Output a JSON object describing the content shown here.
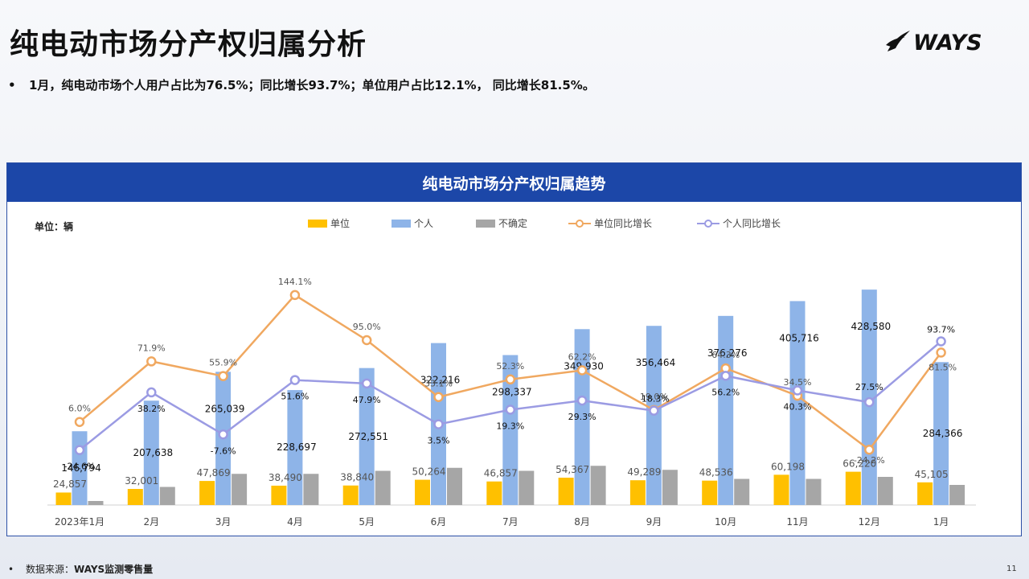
{
  "title": "纯电动市场分产权归属分析",
  "brand": "WAYS",
  "summary": {
    "bullet": "•",
    "text": "1月，纯电动市场个人用户占比为76.5%；同比增长93.7%；单位用户占比12.1%，  同比增长81.5%。"
  },
  "panel_title": "纯电动市场分产权归属趋势",
  "unit_label": "单位：辆",
  "footer": {
    "bullet": "•",
    "label": "数据来源：",
    "value": "WAYS监测零售量"
  },
  "page_number": "11",
  "colors": {
    "unit": "#ffc000",
    "individual": "#8eb4e8",
    "uncertain": "#a6a6a6",
    "unit_yoy": "#f0a860",
    "individual_yoy": "#9b9be3",
    "header": "#1c47a8"
  },
  "chart_data": {
    "type": "bar",
    "categories": [
      "2023年1月",
      "2月",
      "3月",
      "4月",
      "5月",
      "6月",
      "7月",
      "8月",
      "9月",
      "10月",
      "11月",
      "12月",
      "1月"
    ],
    "series": [
      {
        "name": "单位",
        "type": "bar",
        "values": [
          24857,
          32001,
          47869,
          38490,
          38840,
          50264,
          46857,
          54367,
          49289,
          48536,
          60198,
          66220,
          45105
        ]
      },
      {
        "name": "个人",
        "type": "bar",
        "values": [
          146794,
          207638,
          265039,
          228697,
          272551,
          322216,
          298337,
          349930,
          356464,
          376276,
          405716,
          428580,
          284366
        ]
      },
      {
        "name": "不确定",
        "type": "bar",
        "values": [
          8000,
          36000,
          62000,
          62000,
          68000,
          74000,
          68000,
          78000,
          70000,
          52000,
          52000,
          56000,
          40000
        ]
      },
      {
        "name": "单位同比增长",
        "type": "line",
        "values": [
          6.0,
          71.9,
          55.9,
          144.1,
          95.0,
          33.1,
          52.3,
          62.2,
          19.0,
          64.3,
          34.5,
          -24.2,
          81.5
        ]
      },
      {
        "name": "个人同比增长",
        "type": "line",
        "values": [
          -24.6,
          38.2,
          -7.6,
          51.6,
          47.9,
          3.5,
          19.3,
          29.3,
          18.3,
          56.2,
          40.3,
          27.5,
          93.7
        ]
      }
    ],
    "bar_labels": {
      "单位": [
        "24,857",
        "32,001",
        "47,869",
        "38,490",
        "38,840",
        "50,264",
        "46,857",
        "54,367",
        "49,289",
        "48,536",
        "60,198",
        "66,220",
        "45,105"
      ],
      "个人": [
        "146,794",
        "207,638",
        "265,039",
        "228,697",
        "272,551",
        "322,216",
        "298,337",
        "349,930",
        "356,464",
        "376,276",
        "405,716",
        "428,580",
        "284,366"
      ]
    },
    "line_labels": {
      "单位同比增长": [
        "6.0%",
        "71.9%",
        "55.9%",
        "144.1%",
        "95.0%",
        "33.1%",
        "52.3%",
        "62.2%",
        "19.0%",
        "64.3%",
        "34.5%",
        "-24.2%",
        "81.5%"
      ],
      "个人同比增长": [
        "-24.6%",
        "38.2%",
        "-7.6%",
        "51.6%",
        "47.9%",
        "3.5%",
        "19.3%",
        "29.3%",
        "18.3%",
        "56.2%",
        "40.3%",
        "27.5%",
        "93.7%"
      ]
    },
    "ylim": [
      0,
      440000
    ],
    "y2lim": [
      -80,
      200
    ],
    "grid": false,
    "legend_position": "top"
  }
}
